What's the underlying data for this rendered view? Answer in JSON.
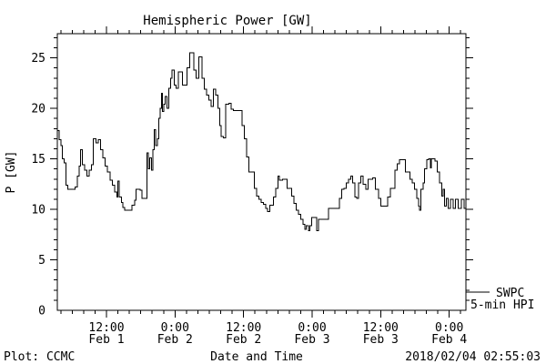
{
  "title": "Hemispheric Power [GW]",
  "colors": {
    "line": "#000000",
    "background": "#ffffff",
    "text": "#000000"
  },
  "footer": {
    "plot_credit": "Plot: CCMC",
    "x_axis_title": "Date and Time",
    "timestamp": "2018/02/04 02:55:03"
  },
  "legend": {
    "source_label": "SWPC",
    "series_label": "5-min HPI"
  },
  "chart_data": {
    "type": "line",
    "style": "step",
    "title": "Hemispheric Power [GW]",
    "xlabel": "Date and Time",
    "ylabel": "P [GW]",
    "ylim": [
      0,
      27.4
    ],
    "y_major_ticks": [
      0,
      5,
      10,
      15,
      20,
      25
    ],
    "y_minor_step": 1,
    "x_start_hours": 3.4,
    "x_end_hours": 74.92,
    "x_minor_step_hours": 2,
    "x_major_ticks": [
      {
        "t": 12,
        "time": "12:00",
        "date": "Feb 1"
      },
      {
        "t": 24,
        "time": "0:00",
        "date": "Feb 2"
      },
      {
        "t": 36,
        "time": "12:00",
        "date": "Feb 2"
      },
      {
        "t": 48,
        "time": "0:00",
        "date": "Feb 3"
      },
      {
        "t": 60,
        "time": "12:00",
        "date": "Feb 3"
      },
      {
        "t": 72,
        "time": "0:00",
        "date": "Feb 4"
      }
    ],
    "grid": false,
    "legend_position": "right-outside",
    "series": [
      {
        "name": "SWPC 5-min HPI",
        "units": "GW",
        "points": [
          [
            3.4,
            17.8
          ],
          [
            3.7,
            16.9
          ],
          [
            4.0,
            16.3
          ],
          [
            4.3,
            15.0
          ],
          [
            4.6,
            14.6
          ],
          [
            4.9,
            12.4
          ],
          [
            5.2,
            12.0
          ],
          [
            6.5,
            12.2
          ],
          [
            6.9,
            13.3
          ],
          [
            7.2,
            14.3
          ],
          [
            7.5,
            15.9
          ],
          [
            7.8,
            14.4
          ],
          [
            8.2,
            13.9
          ],
          [
            8.6,
            13.3
          ],
          [
            9.0,
            13.9
          ],
          [
            9.4,
            14.4
          ],
          [
            9.7,
            17.0
          ],
          [
            10.2,
            16.6
          ],
          [
            10.6,
            16.9
          ],
          [
            11.0,
            15.9
          ],
          [
            11.4,
            15.1
          ],
          [
            11.8,
            14.3
          ],
          [
            12.2,
            13.7
          ],
          [
            12.6,
            12.9
          ],
          [
            13.0,
            12.4
          ],
          [
            13.4,
            11.7
          ],
          [
            13.8,
            11.2
          ],
          [
            14.0,
            12.8
          ],
          [
            14.2,
            11.2
          ],
          [
            14.6,
            10.7
          ],
          [
            14.9,
            10.2
          ],
          [
            15.2,
            9.9
          ],
          [
            16.5,
            10.4
          ],
          [
            16.9,
            10.9
          ],
          [
            17.2,
            12.0
          ],
          [
            17.9,
            11.9
          ],
          [
            18.2,
            11.1
          ],
          [
            18.8,
            11.1
          ],
          [
            19.1,
            15.6
          ],
          [
            19.3,
            14.0
          ],
          [
            19.6,
            15.1
          ],
          [
            19.9,
            13.9
          ],
          [
            20.1,
            15.9
          ],
          [
            20.4,
            17.9
          ],
          [
            20.6,
            16.3
          ],
          [
            20.9,
            17.0
          ],
          [
            21.2,
            19.0
          ],
          [
            21.4,
            20.0
          ],
          [
            21.6,
            21.5
          ],
          [
            21.8,
            19.7
          ],
          [
            22.0,
            20.4
          ],
          [
            22.3,
            21.2
          ],
          [
            22.6,
            20.0
          ],
          [
            22.9,
            22.0
          ],
          [
            23.2,
            23.0
          ],
          [
            23.5,
            23.8
          ],
          [
            23.9,
            22.3
          ],
          [
            24.2,
            22.0
          ],
          [
            24.6,
            23.6
          ],
          [
            25.3,
            22.3
          ],
          [
            26.1,
            24.0
          ],
          [
            26.6,
            25.5
          ],
          [
            27.3,
            23.8
          ],
          [
            27.7,
            23.0
          ],
          [
            28.2,
            25.1
          ],
          [
            28.7,
            23.0
          ],
          [
            29.1,
            21.9
          ],
          [
            29.5,
            21.3
          ],
          [
            29.9,
            20.8
          ],
          [
            30.3,
            20.2
          ],
          [
            30.7,
            21.9
          ],
          [
            31.1,
            21.3
          ],
          [
            31.5,
            20.0
          ],
          [
            31.8,
            18.3
          ],
          [
            32.1,
            17.2
          ],
          [
            32.5,
            17.1
          ],
          [
            32.9,
            20.4
          ],
          [
            33.4,
            20.5
          ],
          [
            33.8,
            19.9
          ],
          [
            34.2,
            19.8
          ],
          [
            35.7,
            18.3
          ],
          [
            36.1,
            17.0
          ],
          [
            36.5,
            15.2
          ],
          [
            36.9,
            13.7
          ],
          [
            37.5,
            13.7
          ],
          [
            37.9,
            12.1
          ],
          [
            38.3,
            11.3
          ],
          [
            38.7,
            11.0
          ],
          [
            39.1,
            10.7
          ],
          [
            39.5,
            10.5
          ],
          [
            39.9,
            10.1
          ],
          [
            40.2,
            9.8
          ],
          [
            40.6,
            10.4
          ],
          [
            41.2,
            11.2
          ],
          [
            41.6,
            12.1
          ],
          [
            42.0,
            13.3
          ],
          [
            42.3,
            12.9
          ],
          [
            42.8,
            13.0
          ],
          [
            43.6,
            12.1
          ],
          [
            44.4,
            11.3
          ],
          [
            44.8,
            10.6
          ],
          [
            45.2,
            9.9
          ],
          [
            45.6,
            9.5
          ],
          [
            46.0,
            9.0
          ],
          [
            46.4,
            8.5
          ],
          [
            46.7,
            8.0
          ],
          [
            47.0,
            8.4
          ],
          [
            47.4,
            7.9
          ],
          [
            47.6,
            8.4
          ],
          [
            47.9,
            9.2
          ],
          [
            48.5,
            9.2
          ],
          [
            48.8,
            7.9
          ],
          [
            49.1,
            9.0
          ],
          [
            50.4,
            9.0
          ],
          [
            50.9,
            10.1
          ],
          [
            52.4,
            10.1
          ],
          [
            52.8,
            11.1
          ],
          [
            53.2,
            12.0
          ],
          [
            53.6,
            12.1
          ],
          [
            54.0,
            12.6
          ],
          [
            54.4,
            13.0
          ],
          [
            54.8,
            13.3
          ],
          [
            55.1,
            12.6
          ],
          [
            55.5,
            11.2
          ],
          [
            55.8,
            11.1
          ],
          [
            56.1,
            12.6
          ],
          [
            56.5,
            13.3
          ],
          [
            56.9,
            12.5
          ],
          [
            57.4,
            12.0
          ],
          [
            57.8,
            13.0
          ],
          [
            58.6,
            13.1
          ],
          [
            59.1,
            12.0
          ],
          [
            59.6,
            11.1
          ],
          [
            60.0,
            10.3
          ],
          [
            61.2,
            11.2
          ],
          [
            61.7,
            12.1
          ],
          [
            62.5,
            13.9
          ],
          [
            62.9,
            14.5
          ],
          [
            63.3,
            14.9
          ],
          [
            64.3,
            13.7
          ],
          [
            65.1,
            13.0
          ],
          [
            65.5,
            12.6
          ],
          [
            65.9,
            12.0
          ],
          [
            66.3,
            11.1
          ],
          [
            66.6,
            10.3
          ],
          [
            66.8,
            9.9
          ],
          [
            67.0,
            12.0
          ],
          [
            67.4,
            12.6
          ],
          [
            67.7,
            14.0
          ],
          [
            68.1,
            14.9
          ],
          [
            68.4,
            15.0
          ],
          [
            68.7,
            14.1
          ],
          [
            68.9,
            15.0
          ],
          [
            69.5,
            14.8
          ],
          [
            69.9,
            13.7
          ],
          [
            70.3,
            12.6
          ],
          [
            70.7,
            11.3
          ],
          [
            70.9,
            12.0
          ],
          [
            71.2,
            10.3
          ],
          [
            71.5,
            11.1
          ],
          [
            71.8,
            10.1
          ],
          [
            72.2,
            11.0
          ],
          [
            72.7,
            10.1
          ],
          [
            73.1,
            11.0
          ],
          [
            73.6,
            10.1
          ],
          [
            74.1,
            11.0
          ],
          [
            74.6,
            10.1
          ],
          [
            74.92,
            10.3
          ]
        ]
      }
    ]
  }
}
